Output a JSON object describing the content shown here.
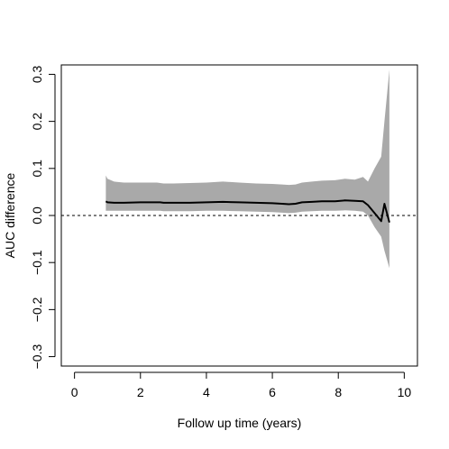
{
  "chart_data": {
    "type": "line",
    "title": "",
    "xlabel": "Follow up time (years)",
    "ylabel": "AUC difference",
    "xlim": [
      -0.4,
      10.4
    ],
    "ylim": [
      -0.32,
      0.32
    ],
    "x_ticks": [
      0,
      2,
      4,
      6,
      8,
      10
    ],
    "x_tick_labels": [
      "0",
      "2",
      "4",
      "6",
      "8",
      "10"
    ],
    "y_ticks": [
      -0.3,
      -0.2,
      -0.1,
      0.0,
      0.1,
      0.2,
      0.3
    ],
    "y_tick_labels": [
      "−0.3",
      "−0.2",
      "−0.1",
      "0.0",
      "0.1",
      "0.2",
      "0.3"
    ],
    "reference_line": {
      "y": 0,
      "style": "dashed"
    },
    "grid": false,
    "colors": {
      "line": "#000000",
      "band": "#a9a9a9",
      "reference": "#000000"
    },
    "series": [
      {
        "x": [
          0.95,
          1.0,
          1.2,
          1.5,
          2.0,
          2.5,
          2.6,
          2.7,
          3.0,
          3.5,
          4.0,
          4.5,
          5.0,
          5.5,
          6.0,
          6.3,
          6.5,
          6.7,
          6.9,
          7.2,
          7.5,
          7.9,
          8.2,
          8.5,
          8.75,
          8.9,
          9.1,
          9.3,
          9.4,
          9.55
        ],
        "y": [
          0.03,
          0.028,
          0.027,
          0.027,
          0.028,
          0.028,
          0.028,
          0.027,
          0.027,
          0.027,
          0.028,
          0.029,
          0.028,
          0.027,
          0.026,
          0.025,
          0.024,
          0.025,
          0.028,
          0.029,
          0.03,
          0.03,
          0.032,
          0.031,
          0.03,
          0.022,
          0.005,
          -0.012,
          0.025,
          -0.015
        ],
        "lower": [
          0.01,
          0.01,
          0.01,
          0.01,
          0.01,
          0.01,
          0.01,
          0.009,
          0.009,
          0.009,
          0.01,
          0.01,
          0.009,
          0.008,
          0.007,
          0.006,
          0.005,
          0.006,
          0.008,
          0.009,
          0.01,
          0.01,
          0.011,
          0.01,
          0.008,
          0.0,
          -0.025,
          -0.045,
          -0.075,
          -0.112
        ],
        "upper": [
          0.085,
          0.078,
          0.072,
          0.07,
          0.07,
          0.07,
          0.069,
          0.068,
          0.068,
          0.069,
          0.07,
          0.072,
          0.07,
          0.068,
          0.067,
          0.066,
          0.065,
          0.066,
          0.07,
          0.072,
          0.074,
          0.075,
          0.078,
          0.076,
          0.082,
          0.072,
          0.1,
          0.125,
          0.2,
          0.31
        ]
      }
    ]
  }
}
